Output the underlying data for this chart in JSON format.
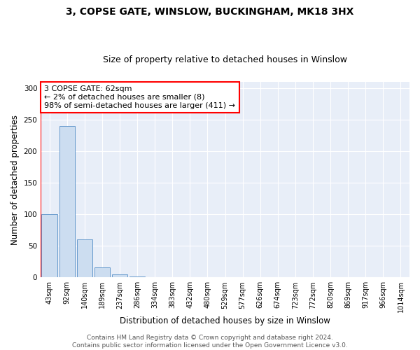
{
  "title": "3, COPSE GATE, WINSLOW, BUCKINGHAM, MK18 3HX",
  "subtitle": "Size of property relative to detached houses in Winslow",
  "xlabel": "Distribution of detached houses by size in Winslow",
  "ylabel": "Number of detached properties",
  "bin_labels": [
    "43sqm",
    "92sqm",
    "140sqm",
    "189sqm",
    "237sqm",
    "286sqm",
    "334sqm",
    "383sqm",
    "432sqm",
    "480sqm",
    "529sqm",
    "577sqm",
    "626sqm",
    "674sqm",
    "723sqm",
    "772sqm",
    "820sqm",
    "869sqm",
    "917sqm",
    "966sqm",
    "1014sqm"
  ],
  "bar_values": [
    100,
    240,
    60,
    16,
    5,
    1,
    0,
    0,
    0,
    0,
    0,
    0,
    0,
    0,
    0,
    0,
    0,
    0,
    0,
    0,
    0
  ],
  "bar_color": "#ccddf0",
  "bar_edgecolor": "#6699cc",
  "annotation_text": "3 COPSE GATE: 62sqm\n← 2% of detached houses are smaller (8)\n98% of semi-detached houses are larger (411) →",
  "annotation_box_color": "white",
  "annotation_box_edgecolor": "red",
  "marker_line_color": "red",
  "ylim": [
    0,
    310
  ],
  "yticks": [
    0,
    50,
    100,
    150,
    200,
    250,
    300
  ],
  "footer": "Contains HM Land Registry data © Crown copyright and database right 2024.\nContains public sector information licensed under the Open Government Licence v3.0.",
  "bg_color": "#e8eef8",
  "title_fontsize": 10,
  "subtitle_fontsize": 9,
  "xlabel_fontsize": 8.5,
  "ylabel_fontsize": 8.5,
  "annotation_fontsize": 8,
  "footer_fontsize": 6.5,
  "tick_fontsize": 7.5,
  "xtick_fontsize": 7
}
